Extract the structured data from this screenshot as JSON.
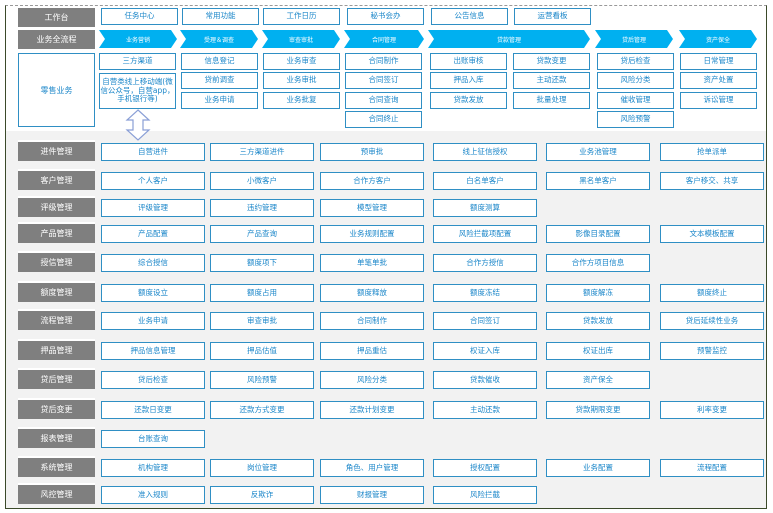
{
  "colors": {
    "accent": "#00b0f0",
    "box_border": "#2f8fc4",
    "text": "#1a86c9",
    "label_bg": "#7f7f7f",
    "lower_bg": "#f2f2f2"
  },
  "workbench": {
    "label": "工作台",
    "items": [
      "任务中心",
      "常用功能",
      "工作日历",
      "秘书会办",
      "公告信息",
      "运营看板"
    ]
  },
  "flow": {
    "label": "业务全流程",
    "stages": [
      "业务营销",
      "受理＆调查",
      "审查审批",
      "合同管理",
      "贷款管理",
      "贷后管理",
      "资产保全"
    ]
  },
  "retail": {
    "label": "零售业务",
    "columns": [
      [
        "三方渠道",
        "自营类线上移动端(微信公众号，自营app，手机银行等)"
      ],
      [
        "信息登记",
        "贷前调查",
        "业务申请"
      ],
      [
        "业务审查",
        "业务审批",
        "业务批复"
      ],
      [
        "合同制作",
        "合同签订",
        "合同查询",
        "合同终止"
      ],
      [
        "出账审核",
        "押品入库",
        "贷款发放"
      ],
      [
        "贷款变更",
        "主动还款",
        "批量处理"
      ],
      [
        "贷后检查",
        "风险分类",
        "催收管理",
        "风险预警"
      ],
      [
        "日常管理",
        "资产处置",
        "诉讼管理"
      ]
    ]
  },
  "modules": [
    {
      "label": "进件管理",
      "items": [
        "自营进件",
        "三方渠道进件",
        "预审批",
        "线上征信授权",
        "业务池管理",
        "抢单派单"
      ]
    },
    {
      "label": "客户管理",
      "items": [
        "个人客户",
        "小微客户",
        "合作方客户",
        "白名单客户",
        "黑名单客户",
        "客户移交、共享"
      ]
    },
    {
      "label": "评级管理",
      "items": [
        "评级管理",
        "违约管理",
        "模型管理",
        "额度测算"
      ]
    },
    {
      "label": "产品管理",
      "items": [
        "产品配置",
        "产品查询",
        "业务规则配置",
        "风险拦截项配置",
        "影像目录配置",
        "文本模板配置"
      ]
    },
    {
      "label": "授信管理",
      "items": [
        "综合授信",
        "额度项下",
        "单笔单批",
        "合作方授信",
        "合作方项目信息"
      ]
    },
    {
      "label": "额度管理",
      "items": [
        "额度设立",
        "额度占用",
        "额度释放",
        "额度冻结",
        "额度解冻",
        "额度终止"
      ]
    },
    {
      "label": "流程管理",
      "items": [
        "业务申请",
        "审查审批",
        "合同制作",
        "合同签订",
        "贷款发放",
        "贷后延续性业务"
      ]
    },
    {
      "label": "押品管理",
      "items": [
        "押品信息管理",
        "押品估值",
        "押品重估",
        "权证入库",
        "权证出库",
        "预警监控"
      ]
    },
    {
      "label": "贷后管理",
      "items": [
        "贷后检查",
        "风险预警",
        "风险分类",
        "贷款催收",
        "资产保全"
      ]
    },
    {
      "label": "贷后变更",
      "items": [
        "还款日变更",
        "还款方式变更",
        "还款计划变更",
        "主动还款",
        "贷款期限变更",
        "利率变更"
      ]
    },
    {
      "label": "报表管理",
      "items": [
        "台账查询"
      ]
    },
    {
      "label": "系统管理",
      "items": [
        "机构管理",
        "岗位管理",
        "角色、用户管理",
        "授权配置",
        "业务配置",
        "流程配置"
      ]
    },
    {
      "label": "风控管理",
      "items": [
        "准入规则",
        "反欺诈",
        "财报管理",
        "风险拦截"
      ]
    }
  ]
}
